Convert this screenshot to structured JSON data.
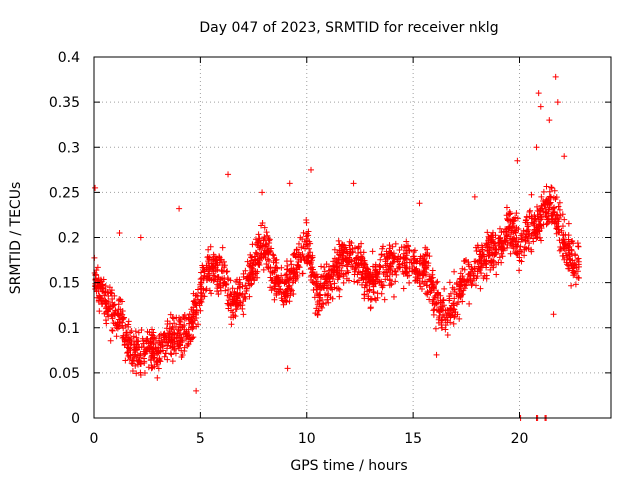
{
  "chart_data": {
    "type": "scatter",
    "title": "Day 047 of 2023, SRMTID for receiver nklg",
    "xlabel": "GPS time / hours",
    "ylabel": "SRMTID / TECUs",
    "xlim": [
      0,
      24.3
    ],
    "ylim": [
      0,
      0.4
    ],
    "xticks": [
      0,
      5,
      10,
      15,
      20
    ],
    "xtick_labels": [
      "0",
      "5",
      "10",
      "15",
      "20"
    ],
    "yticks": [
      0,
      0.05,
      0.1,
      0.15,
      0.2,
      0.25,
      0.3,
      0.35,
      0.4
    ],
    "ytick_labels": [
      "0",
      "0.05",
      "0.1",
      "0.15",
      "0.2",
      "0.25",
      "0.3",
      "0.35",
      "0.4"
    ],
    "grid": true,
    "marker": "plus",
    "color": "#ff0000",
    "trend": [
      {
        "x": 0.0,
        "y": 0.16
      },
      {
        "x": 0.5,
        "y": 0.13
      },
      {
        "x": 1.0,
        "y": 0.12
      },
      {
        "x": 1.5,
        "y": 0.09
      },
      {
        "x": 2.0,
        "y": 0.07
      },
      {
        "x": 2.5,
        "y": 0.08
      },
      {
        "x": 3.0,
        "y": 0.075
      },
      {
        "x": 3.5,
        "y": 0.09
      },
      {
        "x": 4.0,
        "y": 0.09
      },
      {
        "x": 4.5,
        "y": 0.1
      },
      {
        "x": 5.0,
        "y": 0.14
      },
      {
        "x": 5.5,
        "y": 0.17
      },
      {
        "x": 6.0,
        "y": 0.16
      },
      {
        "x": 6.5,
        "y": 0.12
      },
      {
        "x": 7.0,
        "y": 0.14
      },
      {
        "x": 7.5,
        "y": 0.17
      },
      {
        "x": 8.0,
        "y": 0.19
      },
      {
        "x": 8.5,
        "y": 0.16
      },
      {
        "x": 9.0,
        "y": 0.14
      },
      {
        "x": 9.5,
        "y": 0.17
      },
      {
        "x": 10.0,
        "y": 0.19
      },
      {
        "x": 10.5,
        "y": 0.14
      },
      {
        "x": 11.0,
        "y": 0.15
      },
      {
        "x": 11.5,
        "y": 0.17
      },
      {
        "x": 12.0,
        "y": 0.18
      },
      {
        "x": 12.5,
        "y": 0.17
      },
      {
        "x": 13.0,
        "y": 0.15
      },
      {
        "x": 13.5,
        "y": 0.16
      },
      {
        "x": 14.0,
        "y": 0.17
      },
      {
        "x": 14.5,
        "y": 0.17
      },
      {
        "x": 15.0,
        "y": 0.17
      },
      {
        "x": 15.5,
        "y": 0.17
      },
      {
        "x": 16.0,
        "y": 0.14
      },
      {
        "x": 16.5,
        "y": 0.11
      },
      {
        "x": 17.0,
        "y": 0.13
      },
      {
        "x": 17.5,
        "y": 0.16
      },
      {
        "x": 18.0,
        "y": 0.17
      },
      {
        "x": 18.5,
        "y": 0.18
      },
      {
        "x": 19.0,
        "y": 0.19
      },
      {
        "x": 19.5,
        "y": 0.21
      },
      {
        "x": 20.0,
        "y": 0.19
      },
      {
        "x": 20.5,
        "y": 0.21
      },
      {
        "x": 21.0,
        "y": 0.22
      },
      {
        "x": 21.5,
        "y": 0.24
      },
      {
        "x": 22.0,
        "y": 0.2
      },
      {
        "x": 22.5,
        "y": 0.17
      },
      {
        "x": 22.8,
        "y": 0.17
      }
    ],
    "spikes": [
      {
        "x": 0.05,
        "y": 0.255
      },
      {
        "x": 1.2,
        "y": 0.205
      },
      {
        "x": 2.2,
        "y": 0.2
      },
      {
        "x": 4.0,
        "y": 0.232
      },
      {
        "x": 4.8,
        "y": 0.03
      },
      {
        "x": 6.3,
        "y": 0.27
      },
      {
        "x": 7.9,
        "y": 0.25
      },
      {
        "x": 9.2,
        "y": 0.26
      },
      {
        "x": 9.1,
        "y": 0.055
      },
      {
        "x": 10.2,
        "y": 0.275
      },
      {
        "x": 12.2,
        "y": 0.26
      },
      {
        "x": 15.3,
        "y": 0.238
      },
      {
        "x": 16.1,
        "y": 0.07
      },
      {
        "x": 17.9,
        "y": 0.245
      },
      {
        "x": 19.9,
        "y": 0.285
      },
      {
        "x": 20.8,
        "y": 0.3
      },
      {
        "x": 20.9,
        "y": 0.36
      },
      {
        "x": 21.0,
        "y": 0.345
      },
      {
        "x": 21.4,
        "y": 0.33
      },
      {
        "x": 21.7,
        "y": 0.378
      },
      {
        "x": 21.8,
        "y": 0.35
      },
      {
        "x": 22.1,
        "y": 0.29
      },
      {
        "x": 21.3,
        "y": 0.22
      },
      {
        "x": 21.6,
        "y": 0.115
      }
    ],
    "zero_points": [
      {
        "x": 20.05,
        "y": 0.0
      },
      {
        "x": 20.8,
        "y": 0.0
      },
      {
        "x": 20.85,
        "y": 0.0
      },
      {
        "x": 21.2,
        "y": 0.0
      },
      {
        "x": 21.25,
        "y": 0.0
      }
    ],
    "scatter_count": 2300,
    "scatter_seed": 47
  }
}
